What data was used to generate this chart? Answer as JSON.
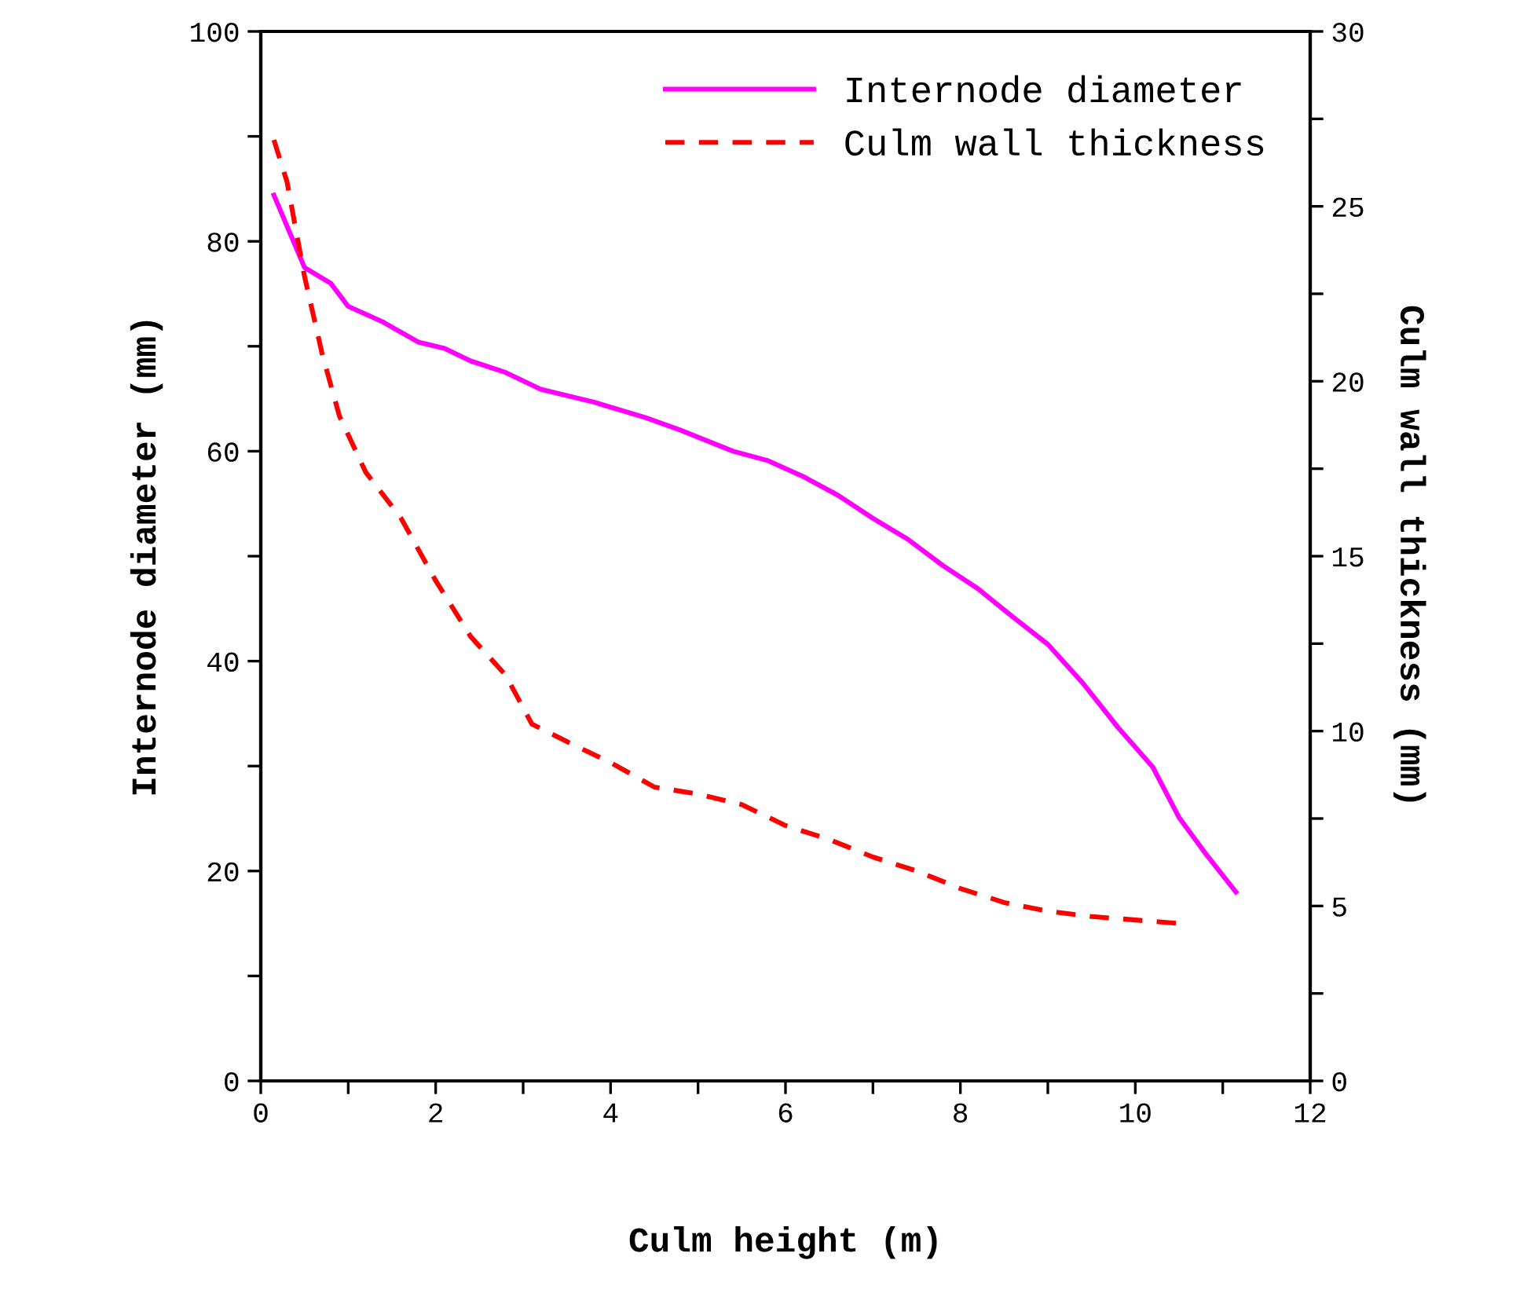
{
  "chart_data": {
    "type": "line",
    "xlabel": "Culm height (m)",
    "ylabel": "Internode diameter (mm)",
    "y2label": "Culm wall thickness (mm)",
    "xlim": [
      0,
      12
    ],
    "xticks": [
      0,
      {
        "value": 1,
        "label": null
      },
      2,
      {
        "value": 3,
        "label": null
      },
      4,
      {
        "value": 5,
        "label": null
      },
      6,
      {
        "value": 7,
        "label": null
      },
      8,
      {
        "value": 9,
        "label": null
      },
      10,
      {
        "value": 11,
        "label": null
      },
      12
    ],
    "ylim": [
      0,
      100
    ],
    "yticks": [
      0,
      {
        "value": 10,
        "label": null
      },
      20,
      {
        "value": 30,
        "label": null
      },
      40,
      {
        "value": 50,
        "label": null
      },
      60,
      {
        "value": 70,
        "label": null
      },
      80,
      {
        "value": 90,
        "label": null
      },
      100
    ],
    "y2lim": [
      0,
      30
    ],
    "y2ticks": [
      0,
      {
        "value": 2.5,
        "label": null
      },
      5,
      {
        "value": 7.5,
        "label": null
      },
      10,
      {
        "value": 12.5,
        "label": null
      },
      15,
      {
        "value": 17.5,
        "label": null
      },
      20,
      {
        "value": 22.5,
        "label": null
      },
      25,
      {
        "value": 27.5,
        "label": null
      },
      30
    ],
    "grid": false,
    "legend": "top right",
    "series": [
      {
        "name": "Internode diameter",
        "color": "#ff00ff",
        "line_style": "solid",
        "x": [
          0.15,
          0.5,
          0.8,
          1.0,
          1.4,
          1.8,
          2.1,
          2.4,
          2.8,
          3.2,
          3.8,
          4.4,
          4.8,
          5.4,
          5.8,
          6.2,
          6.6,
          7.0,
          7.4,
          7.8,
          8.2,
          8.6,
          9.0,
          9.4,
          9.8,
          10.2,
          10.5,
          10.8,
          11.15
        ],
        "values": [
          84.4,
          77.5,
          76,
          73.8,
          72.3,
          70.4,
          69.8,
          68.6,
          67.5,
          65.9,
          64.7,
          63.2,
          62,
          60,
          59.1,
          57.6,
          55.8,
          53.6,
          51.6,
          49.1,
          46.9,
          44.2,
          41.6,
          37.9,
          33.7,
          29.9,
          25.1,
          21.7,
          18
        ]
      },
      {
        "name": "Culm wall thickness",
        "color": "#ff0000",
        "line_style": "dashed",
        "axis": "y2",
        "x": [
          0.15,
          0.3,
          0.5,
          0.7,
          0.9,
          1.2,
          1.6,
          2.0,
          2.4,
          2.8,
          3.1,
          3.5,
          4.0,
          4.5,
          5.0,
          5.5,
          6.0,
          6.5,
          7.0,
          7.5,
          8.0,
          8.5,
          9.0,
          9.5,
          10.0,
          10.5
        ],
        "values": [
          26.9,
          25.7,
          23.0,
          20.8,
          19.0,
          17.4,
          16.1,
          14.3,
          12.7,
          11.6,
          10.2,
          9.7,
          9.1,
          8.4,
          8.2,
          7.9,
          7.3,
          6.9,
          6.4,
          6.0,
          5.5,
          5.1,
          4.85,
          4.7,
          4.6,
          4.5
        ]
      }
    ]
  }
}
